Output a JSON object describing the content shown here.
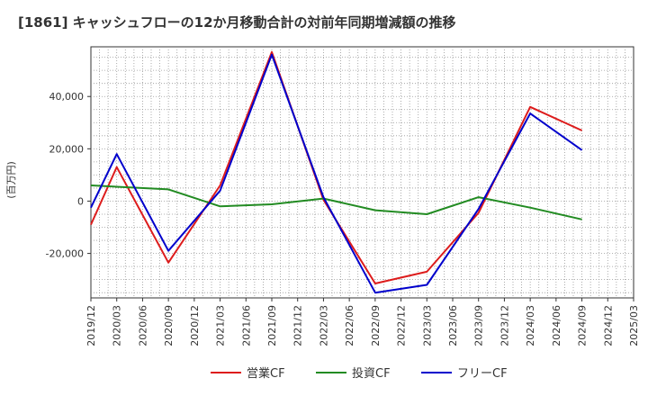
{
  "chart_data": {
    "type": "line",
    "title": "[1861]  キャッシュフローの12か月移動合計の対前年同期増減額の推移",
    "ylabel": "(百万円)",
    "xlabel": "",
    "ylim": [
      -37000,
      59000
    ],
    "yticks": [
      -20000,
      0,
      20000,
      40000
    ],
    "ytick_labels": [
      "-20,000",
      "0",
      "20,000",
      "40,000"
    ],
    "x_ticks": [
      "2019/12",
      "2020/03",
      "2020/06",
      "2020/09",
      "2020/12",
      "2021/03",
      "2021/06",
      "2021/09",
      "2021/12",
      "2022/03",
      "2022/06",
      "2022/09",
      "2022/12",
      "2023/03",
      "2023/06",
      "2023/09",
      "2023/12",
      "2024/03",
      "2024/06",
      "2024/09",
      "2024/12",
      "2025/03"
    ],
    "grid": true,
    "legend_position": "bottom",
    "series": [
      {
        "name": "営業CF",
        "color": "#dd1c1c",
        "x": [
          "2019/12",
          "2020/03",
          "2020/09",
          "2021/03",
          "2021/09",
          "2022/03",
          "2022/09",
          "2023/03",
          "2023/09",
          "2024/03",
          "2024/09"
        ],
        "values": [
          -9000,
          13000,
          -23500,
          6000,
          57000,
          500,
          -31500,
          -27000,
          -4500,
          36000,
          27000
        ]
      },
      {
        "name": "投資CF",
        "color": "#228b22",
        "x": [
          "2019/12",
          "2020/09",
          "2021/03",
          "2021/09",
          "2022/03",
          "2022/09",
          "2023/03",
          "2023/09",
          "2024/03",
          "2024/09"
        ],
        "values": [
          6000,
          4500,
          -2000,
          -1200,
          1000,
          -3500,
          -5000,
          1500,
          -2500,
          -7000
        ]
      },
      {
        "name": "フリーCF",
        "color": "#0000cc",
        "x": [
          "2019/12",
          "2020/03",
          "2020/09",
          "2021/03",
          "2021/09",
          "2022/03",
          "2022/09",
          "2023/03",
          "2023/09",
          "2024/03",
          "2024/09"
        ],
        "values": [
          -2500,
          18000,
          -19000,
          4000,
          56000,
          1500,
          -35000,
          -32000,
          -3000,
          33500,
          19500
        ]
      }
    ]
  }
}
